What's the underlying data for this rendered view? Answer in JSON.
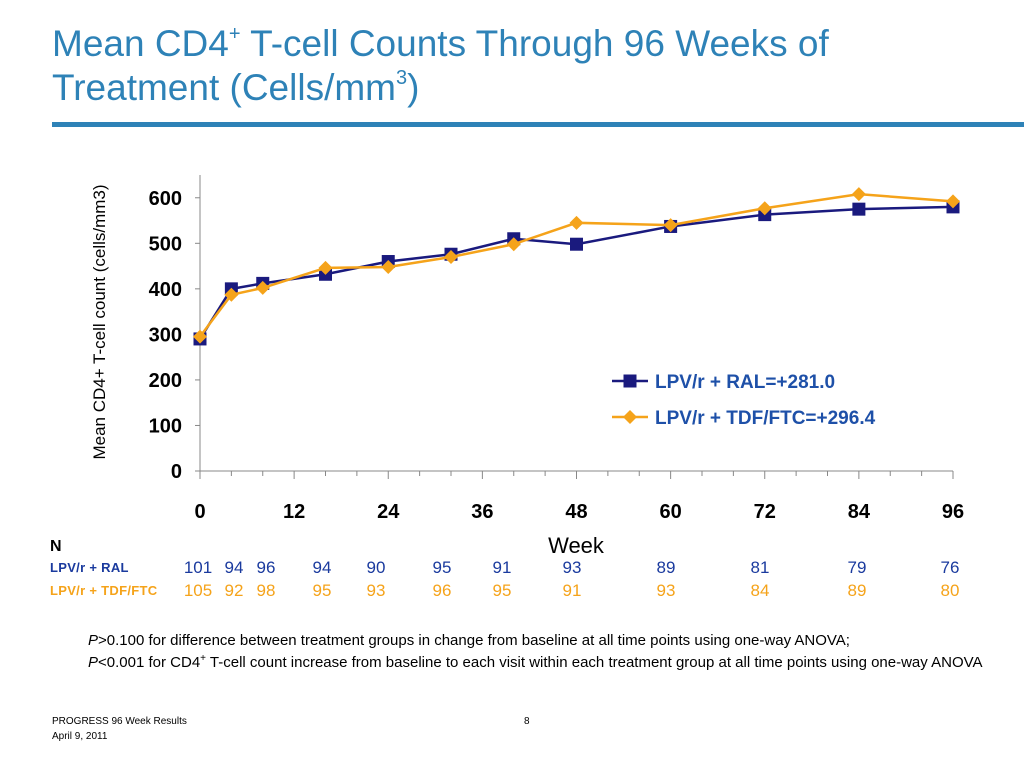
{
  "slide": {
    "title_line1_a": "Mean CD4",
    "title_line1_sup": "+",
    "title_line1_b": " T-cell Counts Through 96 Weeks of",
    "title_line2_a": "Treatment (Cells/mm",
    "title_line2_sup": "3",
    "title_line2_b": ")",
    "accent_color": "#2e82b7"
  },
  "chart_data": {
    "type": "line",
    "ylabel": "Mean CD4+ T-cell count (cells/mm3)",
    "xlabel": "Week",
    "ylim": [
      0,
      650
    ],
    "yticks": [
      0,
      100,
      200,
      300,
      400,
      500,
      600
    ],
    "xlim": [
      0,
      96
    ],
    "xticks": [
      0,
      12,
      24,
      36,
      48,
      60,
      72,
      84,
      96
    ],
    "grid": false,
    "legend_position": "right",
    "x": [
      0,
      4,
      8,
      16,
      24,
      32,
      40,
      48,
      60,
      72,
      84,
      96
    ],
    "series": [
      {
        "name": "LPV/r + RAL=+281.0",
        "color": "#1a1a7e",
        "marker": "square",
        "values": [
          290,
          400,
          412,
          432,
          460,
          476,
          510,
          498,
          537,
          563,
          575,
          580
        ]
      },
      {
        "name": "LPV/r + TDF/FTC=+296.4",
        "color": "#f5a31a",
        "marker": "diamond",
        "values": [
          295,
          387,
          402,
          446,
          448,
          470,
          498,
          545,
          540,
          577,
          608,
          592
        ]
      }
    ]
  },
  "n_table": {
    "header": "N",
    "rows": [
      {
        "label": "LPV/r + RAL",
        "color": "#1a3a9e",
        "values": [
          "101",
          "94",
          "96",
          "94",
          "90",
          "95",
          "91",
          "93",
          "89",
          "81",
          "79",
          "76"
        ]
      },
      {
        "label": "LPV/r + TDF/FTC",
        "color": "#f5a31a",
        "values": [
          "105",
          "92",
          "98",
          "95",
          "93",
          "96",
          "95",
          "91",
          "93",
          "84",
          "89",
          "80"
        ]
      }
    ]
  },
  "notes": {
    "p1_italic": "P",
    "p1_text": ">0.100 for difference between treatment groups in change from baseline at all time points using one-way ANOVA;",
    "p2_italic": "P",
    "p2_a": "<0.001 for CD4",
    "p2_sup": "+",
    "p2_b": " T-cell count increase from baseline to each visit within each treatment group at all time points using one-way ANOVA"
  },
  "footer": {
    "left_line1": "PROGRESS 96 Week Results",
    "left_line2": "April 9, 2011",
    "page_number": "8"
  }
}
